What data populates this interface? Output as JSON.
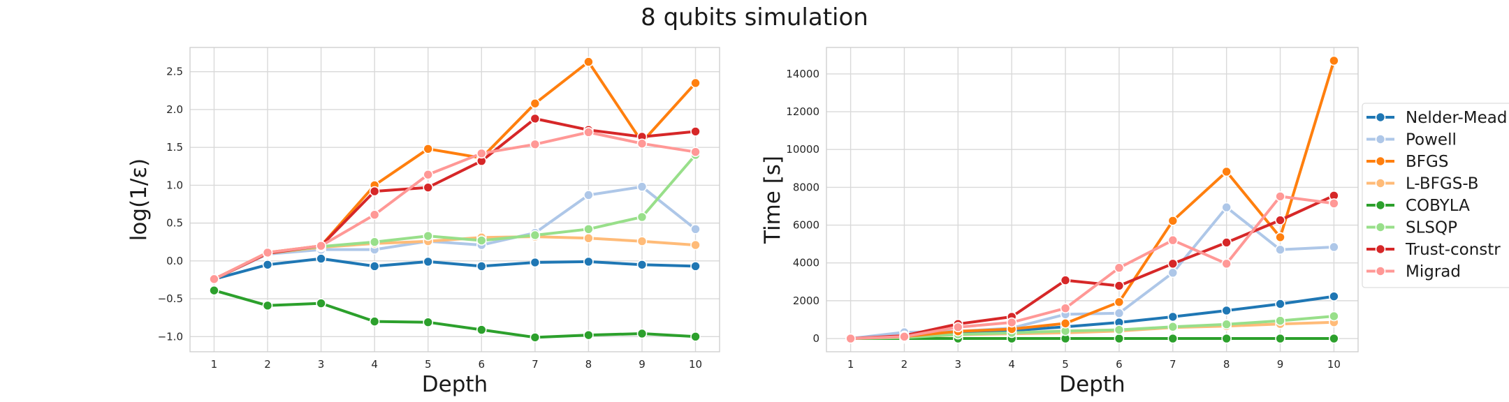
{
  "figure": {
    "title": "8 qubits simulation"
  },
  "chart_data": [
    {
      "type": "line",
      "title": "",
      "xlabel": "Depth",
      "ylabel": "log(1/ε)",
      "x": [
        1,
        2,
        3,
        4,
        5,
        6,
        7,
        8,
        9,
        10
      ],
      "ylim": [
        -1.2,
        2.82
      ],
      "yticks": [
        -1.0,
        -0.5,
        0.0,
        0.5,
        1.0,
        1.5,
        2.0,
        2.5
      ],
      "ytick_labels": [
        "−1.0",
        "−0.5",
        "0.0",
        "0.5",
        "1.0",
        "1.5",
        "2.0",
        "2.5"
      ],
      "grid": true,
      "series": [
        {
          "name": "Nelder-Mead",
          "color": "#1f77b4",
          "values": [
            -0.24,
            -0.05,
            0.03,
            -0.07,
            -0.01,
            -0.07,
            -0.02,
            -0.01,
            -0.05,
            -0.07
          ]
        },
        {
          "name": "Powell",
          "color": "#aec7e8",
          "values": [
            -0.24,
            0.09,
            0.15,
            0.15,
            0.26,
            0.21,
            0.37,
            0.87,
            0.98,
            0.42
          ]
        },
        {
          "name": "BFGS",
          "color": "#ff7f0e",
          "values": [
            -0.24,
            0.11,
            0.2,
            1.0,
            1.48,
            1.36,
            2.08,
            2.63,
            1.57,
            2.35
          ]
        },
        {
          "name": "L-BFGS-B",
          "color": "#ffbb78",
          "values": [
            -0.24,
            0.1,
            0.18,
            0.23,
            0.26,
            0.31,
            0.32,
            0.3,
            0.26,
            0.21
          ]
        },
        {
          "name": "COBYLA",
          "color": "#2ca02c",
          "values": [
            -0.39,
            -0.59,
            -0.56,
            -0.8,
            -0.81,
            -0.91,
            -1.01,
            -0.98,
            -0.96,
            -1.0
          ]
        },
        {
          "name": "SLSQP",
          "color": "#98df8a",
          "values": [
            -0.24,
            0.1,
            0.19,
            0.25,
            0.33,
            0.27,
            0.34,
            0.42,
            0.58,
            1.4
          ]
        },
        {
          "name": "Trust-constr",
          "color": "#d62728",
          "values": [
            -0.24,
            0.1,
            0.2,
            0.92,
            0.97,
            1.32,
            1.88,
            1.73,
            1.64,
            1.71
          ]
        },
        {
          "name": "Migrad",
          "color": "#ff9896",
          "values": [
            -0.24,
            0.11,
            0.2,
            0.61,
            1.14,
            1.42,
            1.54,
            1.7,
            1.55,
            1.44
          ]
        }
      ]
    },
    {
      "type": "line",
      "title": "",
      "xlabel": "Depth",
      "ylabel": "Time [s]",
      "x": [
        1,
        2,
        3,
        4,
        5,
        6,
        7,
        8,
        9,
        10
      ],
      "ylim": [
        -700,
        15400
      ],
      "yticks": [
        0,
        2000,
        4000,
        6000,
        8000,
        10000,
        12000,
        14000
      ],
      "ytick_labels": [
        "0",
        "2000",
        "4000",
        "6000",
        "8000",
        "10000",
        "12000",
        "14000"
      ],
      "grid": true,
      "series": [
        {
          "name": "Nelder-Mead",
          "color": "#1f77b4",
          "values": [
            0,
            100,
            250,
            420,
            620,
            850,
            1150,
            1480,
            1830,
            2230
          ]
        },
        {
          "name": "Powell",
          "color": "#aec7e8",
          "values": [
            0,
            330,
            380,
            550,
            1280,
            1340,
            3480,
            6940,
            4700,
            4840
          ]
        },
        {
          "name": "BFGS",
          "color": "#ff7f0e",
          "values": [
            0,
            100,
            380,
            500,
            800,
            1930,
            6230,
            8830,
            5360,
            14700
          ]
        },
        {
          "name": "L-BFGS-B",
          "color": "#ffbb78",
          "values": [
            0,
            50,
            200,
            250,
            300,
            400,
            580,
            660,
            770,
            860
          ]
        },
        {
          "name": "COBYLA",
          "color": "#2ca02c",
          "values": [
            0,
            0,
            0,
            0,
            0,
            0,
            0,
            0,
            0,
            0
          ]
        },
        {
          "name": "SLSQP",
          "color": "#98df8a",
          "values": [
            0,
            50,
            220,
            300,
            400,
            460,
            620,
            750,
            940,
            1180
          ]
        },
        {
          "name": "Trust-constr",
          "color": "#d62728",
          "values": [
            0,
            150,
            770,
            1150,
            3080,
            2790,
            3960,
            5080,
            6260,
            7560
          ]
        },
        {
          "name": "Migrad",
          "color": "#ff9896",
          "values": [
            0,
            100,
            600,
            850,
            1600,
            3740,
            5200,
            3960,
            7520,
            7150
          ]
        }
      ]
    }
  ],
  "legend": {
    "placement": "right",
    "entries": [
      "Nelder-Mead",
      "Powell",
      "BFGS",
      "L-BFGS-B",
      "COBYLA",
      "SLSQP",
      "Trust-constr",
      "Migrad"
    ]
  }
}
